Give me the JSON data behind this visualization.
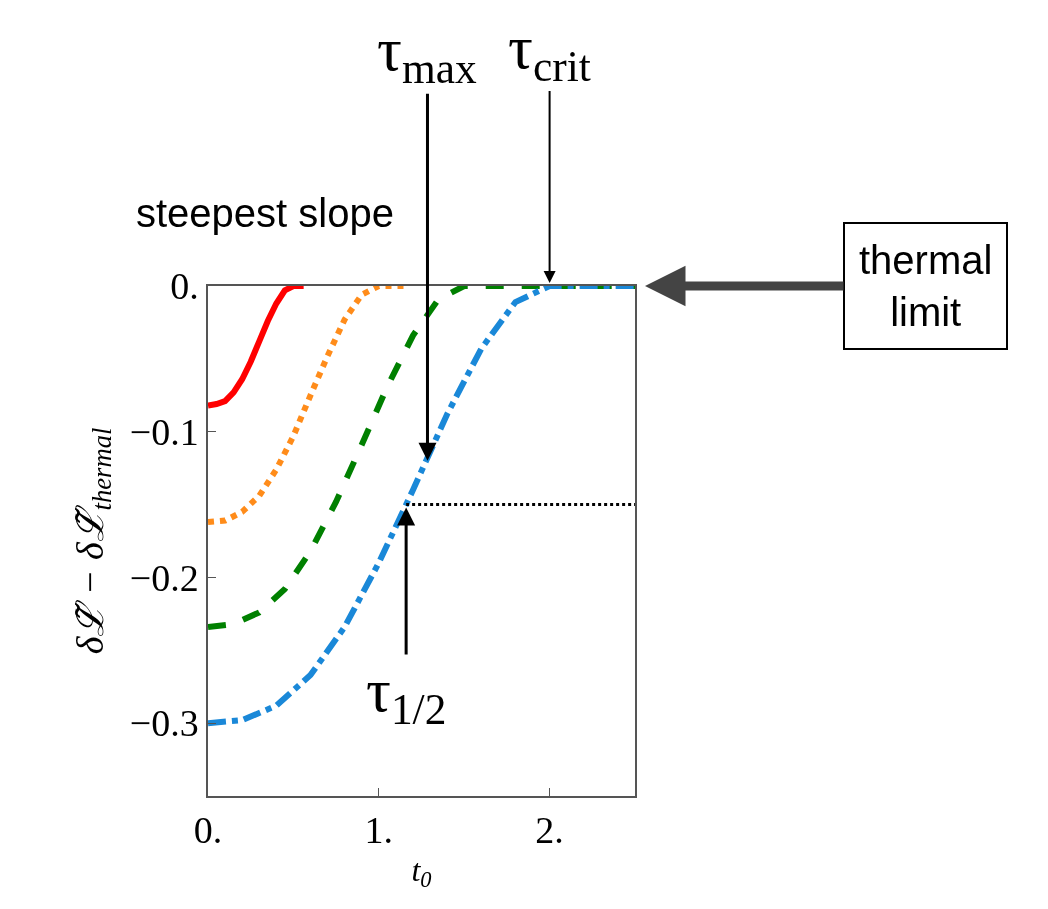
{
  "chart_data": {
    "type": "line",
    "xlabel": "t$_{0}$",
    "ylabel": "δℒ̃ − δℒ̃$_{thermal}$",
    "xlim": [
      0,
      2.5
    ],
    "ylim": [
      -0.35,
      0
    ],
    "xticks": [
      {
        "value": 0,
        "label": "0."
      },
      {
        "value": 1,
        "label": "1."
      },
      {
        "value": 2,
        "label": "2."
      }
    ],
    "yticks": [
      {
        "value": 0,
        "label": "0."
      },
      {
        "value": -0.1,
        "label": "−0.1"
      },
      {
        "value": -0.2,
        "label": "−0.2"
      },
      {
        "value": -0.3,
        "label": "−0.3"
      }
    ],
    "series": [
      {
        "color": "#ff0000",
        "line_style": "solid",
        "x": [
          0,
          0.05,
          0.1,
          0.15,
          0.2,
          0.25,
          0.3,
          0.35,
          0.4,
          0.45,
          0.5,
          0.56
        ],
        "values": [
          -0.082,
          -0.081,
          -0.079,
          -0.073,
          -0.064,
          -0.052,
          -0.038,
          -0.024,
          -0.012,
          -0.003,
          0,
          0
        ]
      },
      {
        "color": "#ff8c1a",
        "line_style": "dotted",
        "x": [
          0,
          0.1,
          0.2,
          0.3,
          0.4,
          0.5,
          0.6,
          0.7,
          0.8,
          0.9,
          1.0,
          1.15
        ],
        "values": [
          -0.162,
          -0.161,
          -0.155,
          -0.144,
          -0.126,
          -0.103,
          -0.075,
          -0.048,
          -0.023,
          -0.006,
          0,
          0
        ]
      },
      {
        "color": "#008000",
        "line_style": "dashed",
        "x": [
          0,
          0.15,
          0.3,
          0.45,
          0.6,
          0.75,
          0.9,
          1.05,
          1.2,
          1.35,
          1.5,
          2.5
        ],
        "values": [
          -0.234,
          -0.232,
          -0.224,
          -0.208,
          -0.182,
          -0.148,
          -0.109,
          -0.069,
          -0.034,
          -0.009,
          0,
          0
        ]
      },
      {
        "color": "#1a88d8",
        "line_style": "dashdot",
        "x": [
          0,
          0.2,
          0.4,
          0.6,
          0.8,
          1.0,
          1.2,
          1.4,
          1.6,
          1.8,
          2.0,
          2.5
        ],
        "values": [
          -0.3,
          -0.298,
          -0.288,
          -0.267,
          -0.234,
          -0.19,
          -0.14,
          -0.088,
          -0.043,
          -0.011,
          0,
          0
        ]
      },
      {
        "color": "#000000",
        "line_style": "dotted",
        "x": [
          1.16,
          2.5
        ],
        "values": [
          -0.15,
          -0.15
        ]
      }
    ],
    "annotations": [
      "steepest slope",
      {
        "text": "τ$_{max}$",
        "x": 1.285,
        "y": -0.122
      },
      {
        "text": "τ$_{crit}$",
        "x": 2.0,
        "y": 0
      },
      {
        "text": "τ$_{1/2}$",
        "x": 1.16,
        "y": -0.15
      },
      {
        "text": "thermal\nlimit",
        "x": 2.5,
        "y": 0
      }
    ]
  }
}
